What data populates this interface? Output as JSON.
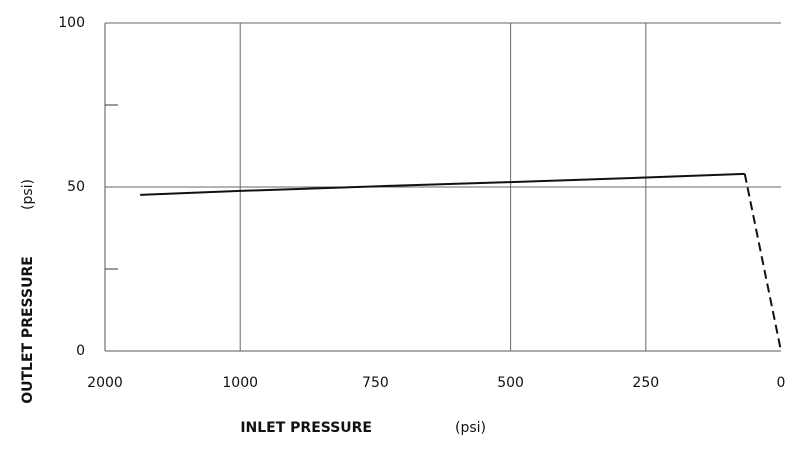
{
  "chart_data": {
    "type": "line",
    "xlabel": "INLET PRESSURE",
    "xlabel_unit": "(psi)",
    "ylabel": "OUTLET PRESSURE",
    "ylabel_unit": "(psi)",
    "xlim": [
      2000,
      0
    ],
    "xticks": [
      2000,
      1000,
      750,
      500,
      250,
      0
    ],
    "ylim": [
      0,
      100
    ],
    "yticks": [
      0,
      50,
      100
    ],
    "yminor_ticks": [
      25,
      75
    ],
    "xgrid": [
      1000,
      500,
      250
    ],
    "ygrid": [
      50,
      100
    ],
    "series": [
      {
        "color": "#111111",
        "dashed": false,
        "x": [
          1740,
          1000,
          750,
          500,
          250,
          67
        ],
        "values": [
          47.6,
          48.8,
          50.2,
          51.5,
          52.9,
          54
        ]
      },
      {
        "color": "#111111",
        "dashed": true,
        "x": [
          67,
          0
        ],
        "values": [
          54,
          0
        ]
      }
    ]
  }
}
